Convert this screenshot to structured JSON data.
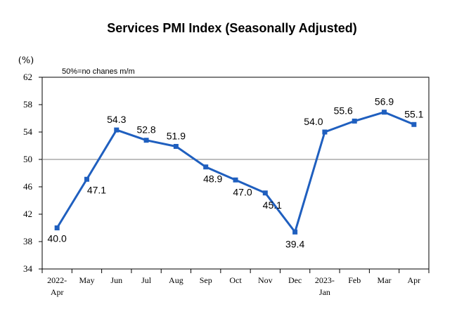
{
  "chart_data": {
    "type": "line",
    "title": "Services PMI Index (Seasonally Adjusted)",
    "ylabel": "(%)",
    "note": "50%=no chanes m/m",
    "ylim": [
      34,
      62
    ],
    "yticks": [
      34,
      38,
      42,
      46,
      50,
      54,
      58,
      62
    ],
    "reference_line": 50,
    "grid": false,
    "categories": [
      [
        "2022-",
        "Apr"
      ],
      [
        "May"
      ],
      [
        "Jun"
      ],
      [
        "Jul"
      ],
      [
        "Aug"
      ],
      [
        "Sep"
      ],
      [
        "Oct"
      ],
      [
        "Nov"
      ],
      [
        "Dec"
      ],
      [
        "2023-",
        "Jan"
      ],
      [
        "Feb"
      ],
      [
        "Mar"
      ],
      [
        "Apr"
      ]
    ],
    "series": [
      {
        "values": [
          40.0,
          47.1,
          54.3,
          52.8,
          51.9,
          48.9,
          47.0,
          45.1,
          39.4,
          54.0,
          55.6,
          56.9,
          55.1
        ],
        "labels": [
          "40.0",
          "47.1",
          "54.3",
          "52.8",
          "51.9",
          "48.9",
          "47.0",
          "45.1",
          "39.4",
          "54.0",
          "55.6",
          "56.9",
          "55.1"
        ],
        "color": "#1f5fbf"
      }
    ]
  }
}
